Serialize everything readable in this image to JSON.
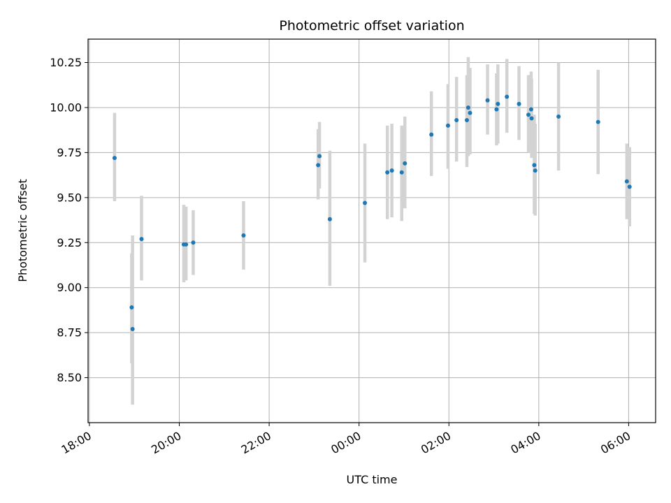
{
  "chart_data": {
    "type": "scatter",
    "title": "Photometric offset variation",
    "xlabel": "UTC time",
    "ylabel": "Photometric offset",
    "x_unit": "hours since 18:00 UTC",
    "xlim": [
      -0.03,
      12.6
    ],
    "ylim": [
      8.25,
      10.38
    ],
    "x_ticks": [
      {
        "value": 0,
        "label": "18:00"
      },
      {
        "value": 2,
        "label": "20:00"
      },
      {
        "value": 4,
        "label": "22:00"
      },
      {
        "value": 6,
        "label": "00:00"
      },
      {
        "value": 8,
        "label": "02:00"
      },
      {
        "value": 10,
        "label": "04:00"
      },
      {
        "value": 12,
        "label": "06:00"
      }
    ],
    "y_ticks": [
      {
        "value": 8.5,
        "label": "8.50"
      },
      {
        "value": 8.75,
        "label": "8.75"
      },
      {
        "value": 9.0,
        "label": "9.00"
      },
      {
        "value": 9.25,
        "label": "9.25"
      },
      {
        "value": 9.5,
        "label": "9.50"
      },
      {
        "value": 9.75,
        "label": "9.75"
      },
      {
        "value": 10.0,
        "label": "10.00"
      },
      {
        "value": 10.25,
        "label": "10.25"
      }
    ],
    "grid": true,
    "marker_color": "#1f77b4",
    "errorbar_color": "#d3d3d3",
    "points": [
      {
        "x": 0.56,
        "y": 9.72,
        "lo": 9.48,
        "hi": 9.97
      },
      {
        "x": 0.94,
        "y": 8.89,
        "lo": 8.58,
        "hi": 9.19
      },
      {
        "x": 0.96,
        "y": 8.77,
        "lo": 8.35,
        "hi": 9.29
      },
      {
        "x": 1.16,
        "y": 9.27,
        "lo": 9.04,
        "hi": 9.51
      },
      {
        "x": 2.1,
        "y": 9.24,
        "lo": 9.03,
        "hi": 9.46
      },
      {
        "x": 2.15,
        "y": 9.24,
        "lo": 9.04,
        "hi": 9.45
      },
      {
        "x": 2.31,
        "y": 9.25,
        "lo": 9.07,
        "hi": 9.43
      },
      {
        "x": 3.43,
        "y": 9.29,
        "lo": 9.1,
        "hi": 9.48
      },
      {
        "x": 5.09,
        "y": 9.68,
        "lo": 9.49,
        "hi": 9.88
      },
      {
        "x": 5.12,
        "y": 9.73,
        "lo": 9.55,
        "hi": 9.92
      },
      {
        "x": 5.35,
        "y": 9.38,
        "lo": 9.01,
        "hi": 9.76
      },
      {
        "x": 6.13,
        "y": 9.47,
        "lo": 9.14,
        "hi": 9.8
      },
      {
        "x": 6.63,
        "y": 9.64,
        "lo": 9.38,
        "hi": 9.9
      },
      {
        "x": 6.73,
        "y": 9.65,
        "lo": 9.39,
        "hi": 9.91
      },
      {
        "x": 6.95,
        "y": 9.64,
        "lo": 9.37,
        "hi": 9.9
      },
      {
        "x": 7.02,
        "y": 9.69,
        "lo": 9.44,
        "hi": 9.95
      },
      {
        "x": 7.61,
        "y": 9.85,
        "lo": 9.62,
        "hi": 10.09
      },
      {
        "x": 7.98,
        "y": 9.9,
        "lo": 9.66,
        "hi": 10.13
      },
      {
        "x": 8.17,
        "y": 9.93,
        "lo": 9.7,
        "hi": 10.17
      },
      {
        "x": 8.4,
        "y": 9.93,
        "lo": 9.67,
        "hi": 10.18
      },
      {
        "x": 8.43,
        "y": 10.0,
        "lo": 9.73,
        "hi": 10.28
      },
      {
        "x": 8.47,
        "y": 9.97,
        "lo": 9.74,
        "hi": 10.22
      },
      {
        "x": 8.86,
        "y": 10.04,
        "lo": 9.85,
        "hi": 10.24
      },
      {
        "x": 9.06,
        "y": 9.99,
        "lo": 9.79,
        "hi": 10.19
      },
      {
        "x": 9.09,
        "y": 10.02,
        "lo": 9.8,
        "hi": 10.24
      },
      {
        "x": 9.29,
        "y": 10.06,
        "lo": 9.86,
        "hi": 10.27
      },
      {
        "x": 9.56,
        "y": 10.02,
        "lo": 9.82,
        "hi": 10.23
      },
      {
        "x": 9.77,
        "y": 9.96,
        "lo": 9.75,
        "hi": 10.18
      },
      {
        "x": 9.83,
        "y": 9.99,
        "lo": 9.78,
        "hi": 10.2
      },
      {
        "x": 9.84,
        "y": 9.94,
        "lo": 9.72,
        "hi": 10.16
      },
      {
        "x": 9.9,
        "y": 9.68,
        "lo": 9.41,
        "hi": 9.96
      },
      {
        "x": 9.92,
        "y": 9.65,
        "lo": 9.4,
        "hi": 9.91
      },
      {
        "x": 10.44,
        "y": 9.95,
        "lo": 9.65,
        "hi": 10.25
      },
      {
        "x": 11.32,
        "y": 9.92,
        "lo": 9.63,
        "hi": 10.21
      },
      {
        "x": 11.96,
        "y": 9.59,
        "lo": 9.38,
        "hi": 9.8
      },
      {
        "x": 12.02,
        "y": 9.56,
        "lo": 9.34,
        "hi": 9.78
      }
    ]
  }
}
